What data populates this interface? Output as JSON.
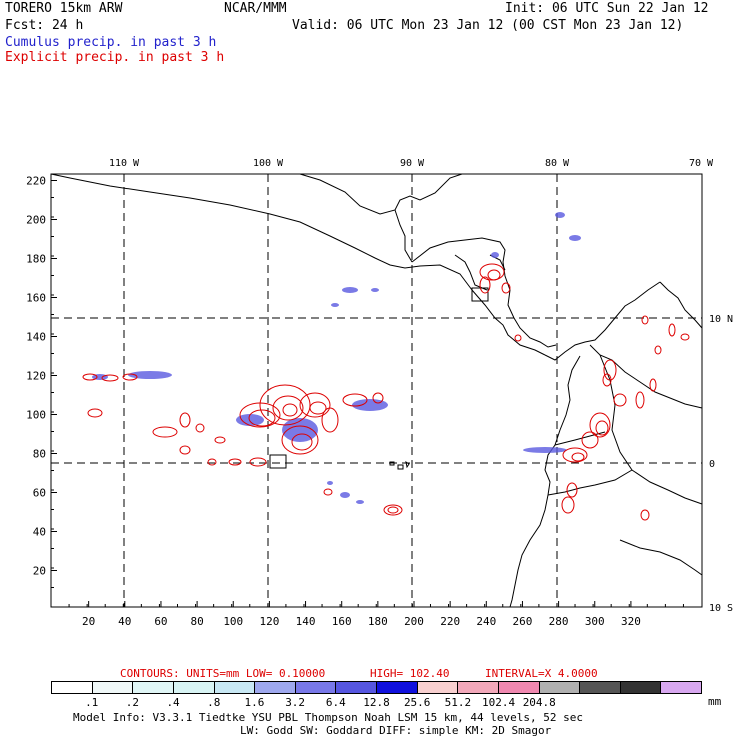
{
  "header": {
    "title": "TORERO  15km ARW",
    "org": "NCAR/MMM",
    "init": "Init: 06 UTC Sun 22 Jan 12",
    "fcst": "Fcst:   24 h",
    "valid": "Valid: 06 UTC Mon 23 Jan 12 (00 CST Mon 23 Jan 12)",
    "cumulus": "Cumulus precip. in past 3 h",
    "explicit": "Explicit precip. in past 3 h"
  },
  "map": {
    "lon_labels": [
      "110 W",
      "100 W",
      "90 W",
      "80 W",
      "70 W"
    ],
    "lat_labels": [
      "10 N",
      "0",
      "10 S"
    ],
    "x_ticks": [
      "20",
      "40",
      "60",
      "80",
      "100",
      "120",
      "140",
      "160",
      "180",
      "200",
      "220",
      "240",
      "260",
      "280",
      "300",
      "320"
    ],
    "y_ticks": [
      "20",
      "40",
      "60",
      "80",
      "100",
      "120",
      "140",
      "160",
      "180",
      "200",
      "220"
    ]
  },
  "contours_info": {
    "contours": "CONTOURS:  UNITS=mm  LOW= 0.10000",
    "high": "HIGH=  102.40",
    "interval": "INTERVAL=X  4.0000"
  },
  "legend": {
    "colors": [
      "#ffffff",
      "#f0f8f8",
      "#e0f6f6",
      "#d8f4f4",
      "#c8e8f4",
      "#9ea8ee",
      "#7878e8",
      "#5656e0",
      "#1010dd",
      "#f8d0d0",
      "#f2a8ba",
      "#f088b0",
      "#b0b0b0",
      "#555555",
      "#333333",
      "#d8a8f0"
    ],
    "labels": [
      ".1",
      ".2",
      ".4",
      ".8",
      "1.6",
      "3.2",
      "6.4",
      "12.8",
      "25.6",
      "51.2",
      "102.4",
      "204.8"
    ],
    "unit": "mm"
  },
  "footer": {
    "line1": "Model Info: V3.3.1    Tiedtke YSU PBL  Thompson    Noah LSM  15 km,   44 levels,   52 sec",
    "line2": "LW: Godd SW: Goddard DIFF: simple KM: 2D Smagor"
  }
}
